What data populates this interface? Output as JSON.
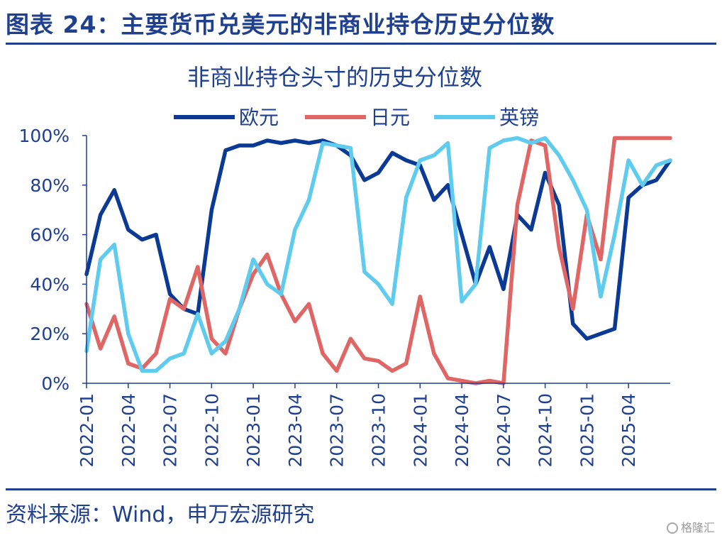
{
  "header": {
    "title": "图表 24：主要货币兑美元的非商业持仓历史分位数"
  },
  "footer": {
    "source": "资料来源：Wind，申万宏源研究",
    "watermark": "格隆汇"
  },
  "colors": {
    "brand": "#1f3f8f",
    "eur": "#0a3a94",
    "jpy": "#e06666",
    "gbp": "#5fcbee"
  },
  "chart_data": {
    "type": "line",
    "title": "非商业持仓头寸的历史分位数",
    "legend_position": "top",
    "y_ticks": [
      "100%",
      "80%",
      "60%",
      "40%",
      "20%",
      "0%"
    ],
    "x_ticks": [
      "2022-01",
      "2022-04",
      "2022-07",
      "2022-10",
      "2023-01",
      "2023-04",
      "2023-07",
      "2023-10",
      "2024-01",
      "2024-04",
      "2024-07",
      "2024-10",
      "2025-01",
      "2025-04"
    ],
    "ylim": [
      0,
      100
    ],
    "x_range": [
      "2022-01",
      "2025-07"
    ],
    "series": [
      {
        "name": "欧元",
        "key": "eur",
        "x": [
          "2022-01",
          "2022-02",
          "2022-03",
          "2022-04",
          "2022-05",
          "2022-06",
          "2022-07",
          "2022-08",
          "2022-09",
          "2022-10",
          "2022-11",
          "2022-12",
          "2023-01",
          "2023-02",
          "2023-03",
          "2023-04",
          "2023-05",
          "2023-06",
          "2023-07",
          "2023-08",
          "2023-09",
          "2023-10",
          "2023-11",
          "2023-12",
          "2024-01",
          "2024-02",
          "2024-03",
          "2024-04",
          "2024-05",
          "2024-06",
          "2024-07",
          "2024-08",
          "2024-09",
          "2024-10",
          "2024-11",
          "2024-12",
          "2025-01",
          "2025-02",
          "2025-03",
          "2025-04",
          "2025-05",
          "2025-06",
          "2025-07"
        ],
        "y": [
          44,
          68,
          78,
          62,
          58,
          60,
          36,
          30,
          28,
          70,
          94,
          96,
          96,
          98,
          97,
          98,
          97,
          98,
          96,
          92,
          82,
          85,
          93,
          90,
          88,
          74,
          80,
          60,
          40,
          55,
          38,
          68,
          62,
          85,
          72,
          24,
          18,
          20,
          22,
          75,
          80,
          82,
          90
        ]
      },
      {
        "name": "日元",
        "key": "jpy",
        "x": [
          "2022-01",
          "2022-02",
          "2022-03",
          "2022-04",
          "2022-05",
          "2022-06",
          "2022-07",
          "2022-08",
          "2022-09",
          "2022-10",
          "2022-11",
          "2022-12",
          "2023-01",
          "2023-02",
          "2023-03",
          "2023-04",
          "2023-05",
          "2023-06",
          "2023-07",
          "2023-08",
          "2023-09",
          "2023-10",
          "2023-11",
          "2023-12",
          "2024-01",
          "2024-02",
          "2024-03",
          "2024-04",
          "2024-05",
          "2024-06",
          "2024-07",
          "2024-08",
          "2024-09",
          "2024-10",
          "2024-11",
          "2024-12",
          "2025-01",
          "2025-02",
          "2025-03",
          "2025-04",
          "2025-05",
          "2025-06",
          "2025-07"
        ],
        "y": [
          32,
          14,
          27,
          8,
          6,
          12,
          34,
          30,
          47,
          18,
          12,
          30,
          44,
          52,
          36,
          25,
          32,
          12,
          5,
          18,
          10,
          9,
          5,
          8,
          35,
          12,
          2,
          1,
          0,
          1,
          0,
          72,
          98,
          96,
          55,
          30,
          68,
          50,
          99,
          99,
          99,
          99,
          99
        ]
      },
      {
        "name": "英镑",
        "key": "gbp",
        "x": [
          "2022-01",
          "2022-02",
          "2022-03",
          "2022-04",
          "2022-05",
          "2022-06",
          "2022-07",
          "2022-08",
          "2022-09",
          "2022-10",
          "2022-11",
          "2022-12",
          "2023-01",
          "2023-02",
          "2023-03",
          "2023-04",
          "2023-05",
          "2023-06",
          "2023-07",
          "2023-08",
          "2023-09",
          "2023-10",
          "2023-11",
          "2023-12",
          "2024-01",
          "2024-02",
          "2024-03",
          "2024-04",
          "2024-05",
          "2024-06",
          "2024-07",
          "2024-08",
          "2024-09",
          "2024-10",
          "2024-11",
          "2024-12",
          "2025-01",
          "2025-02",
          "2025-03",
          "2025-04",
          "2025-05",
          "2025-06",
          "2025-07"
        ],
        "y": [
          13,
          50,
          56,
          20,
          5,
          5,
          10,
          12,
          28,
          12,
          17,
          30,
          50,
          40,
          36,
          62,
          74,
          97,
          96,
          95,
          45,
          40,
          32,
          75,
          90,
          92,
          97,
          33,
          40,
          95,
          98,
          99,
          97,
          99,
          92,
          82,
          70,
          35,
          60,
          90,
          80,
          88,
          90
        ]
      }
    ]
  }
}
